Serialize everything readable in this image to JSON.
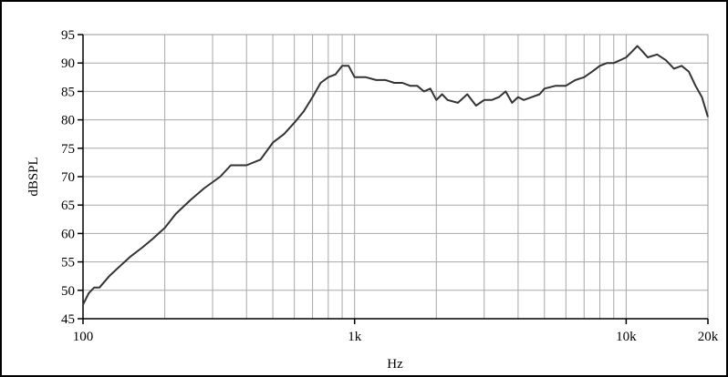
{
  "chart_data": {
    "type": "line",
    "xlabel": "Hz",
    "ylabel": "dBSPL",
    "x_scale": "log",
    "xlim": [
      100,
      20000
    ],
    "ylim": [
      45,
      95
    ],
    "grid": true,
    "x_ticks": [
      {
        "value": 100,
        "label": "100"
      },
      {
        "value": 1000,
        "label": "1k"
      },
      {
        "value": 10000,
        "label": "10k"
      },
      {
        "value": 20000,
        "label": "20k"
      }
    ],
    "y_ticks": [
      {
        "value": 45,
        "label": "45"
      },
      {
        "value": 50,
        "label": "50"
      },
      {
        "value": 55,
        "label": "55"
      },
      {
        "value": 60,
        "label": "60"
      },
      {
        "value": 65,
        "label": "65"
      },
      {
        "value": 70,
        "label": "70"
      },
      {
        "value": 75,
        "label": "75"
      },
      {
        "value": 80,
        "label": "80"
      },
      {
        "value": 85,
        "label": "85"
      },
      {
        "value": 90,
        "label": "90"
      },
      {
        "value": 95,
        "label": "95"
      }
    ],
    "series": [
      {
        "color": "#333333",
        "x": [
          100,
          105,
          110,
          115,
          125,
          135,
          150,
          165,
          180,
          200,
          220,
          250,
          280,
          320,
          350,
          400,
          450,
          500,
          550,
          600,
          650,
          700,
          750,
          800,
          850,
          900,
          950,
          1000,
          1100,
          1200,
          1300,
          1400,
          1500,
          1600,
          1700,
          1800,
          1900,
          2000,
          2100,
          2200,
          2400,
          2600,
          2800,
          3000,
          3200,
          3400,
          3600,
          3800,
          4000,
          4200,
          4500,
          4800,
          5000,
          5500,
          6000,
          6500,
          7000,
          7500,
          8000,
          8500,
          9000,
          9500,
          10000,
          10500,
          11000,
          11500,
          12000,
          13000,
          14000,
          15000,
          16000,
          17000,
          18000,
          19000,
          20000
        ],
        "y": [
          47.5,
          49.5,
          50.5,
          50.5,
          52.5,
          54,
          56,
          57.5,
          59,
          61,
          63.5,
          66,
          68,
          70,
          72,
          72,
          73,
          76,
          77.5,
          79.5,
          81.5,
          84,
          86.5,
          87.5,
          88,
          89.5,
          89.5,
          87.5,
          87.5,
          87,
          87,
          86.5,
          86.5,
          86,
          86,
          85,
          85.5,
          83.5,
          84.5,
          83.5,
          83,
          84.5,
          82.5,
          83.5,
          83.5,
          84,
          85,
          83,
          84,
          83.5,
          84,
          84.5,
          85.5,
          86,
          86,
          87,
          87.5,
          88.5,
          89.5,
          90,
          90,
          90.5,
          91,
          92,
          93,
          92,
          91,
          91.5,
          90.5,
          89,
          89.5,
          88.5,
          86,
          84,
          80.5
        ]
      }
    ]
  }
}
